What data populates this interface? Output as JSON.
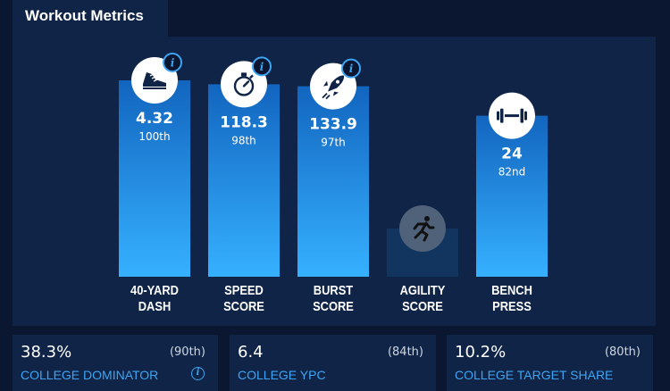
{
  "header": {
    "title": "Workout Metrics"
  },
  "chart_data": {
    "type": "bar",
    "categories": [
      [
        "40-YARD",
        "DASH"
      ],
      [
        "SPEED",
        "SCORE"
      ],
      [
        "BURST",
        "SCORE"
      ],
      [
        "AGILITY",
        "SCORE"
      ],
      [
        "BENCH",
        "PRESS"
      ]
    ],
    "values": [
      "4.32",
      "118.3",
      "133.9",
      "",
      "24"
    ],
    "percentiles": [
      100,
      98,
      97,
      null,
      82
    ],
    "percentile_labels": [
      "100th",
      "98th",
      "97th",
      "",
      "82nd"
    ],
    "icons": [
      "shoe-icon",
      "stopwatch-icon",
      "rocket-icon",
      "runner-icon",
      "dumbbell-icon"
    ],
    "info_button": [
      true,
      true,
      true,
      false,
      false
    ],
    "available": [
      true,
      true,
      true,
      false,
      true
    ],
    "ylim": [
      0,
      100
    ],
    "bar_color_top": "#1265bf",
    "bar_color_bottom": "#36b1ff",
    "unavailable_bar_color": "#12355f"
  },
  "metrics": [
    {
      "value": "38.3%",
      "percentile": "(90th)",
      "label": "COLLEGE DOMINATOR",
      "info": "i"
    },
    {
      "value": "6.4",
      "percentile": "(84th)",
      "label": "COLLEGE YPC"
    },
    {
      "value": "10.2%",
      "percentile": "(80th)",
      "label": "COLLEGE TARGET SHARE"
    }
  ]
}
